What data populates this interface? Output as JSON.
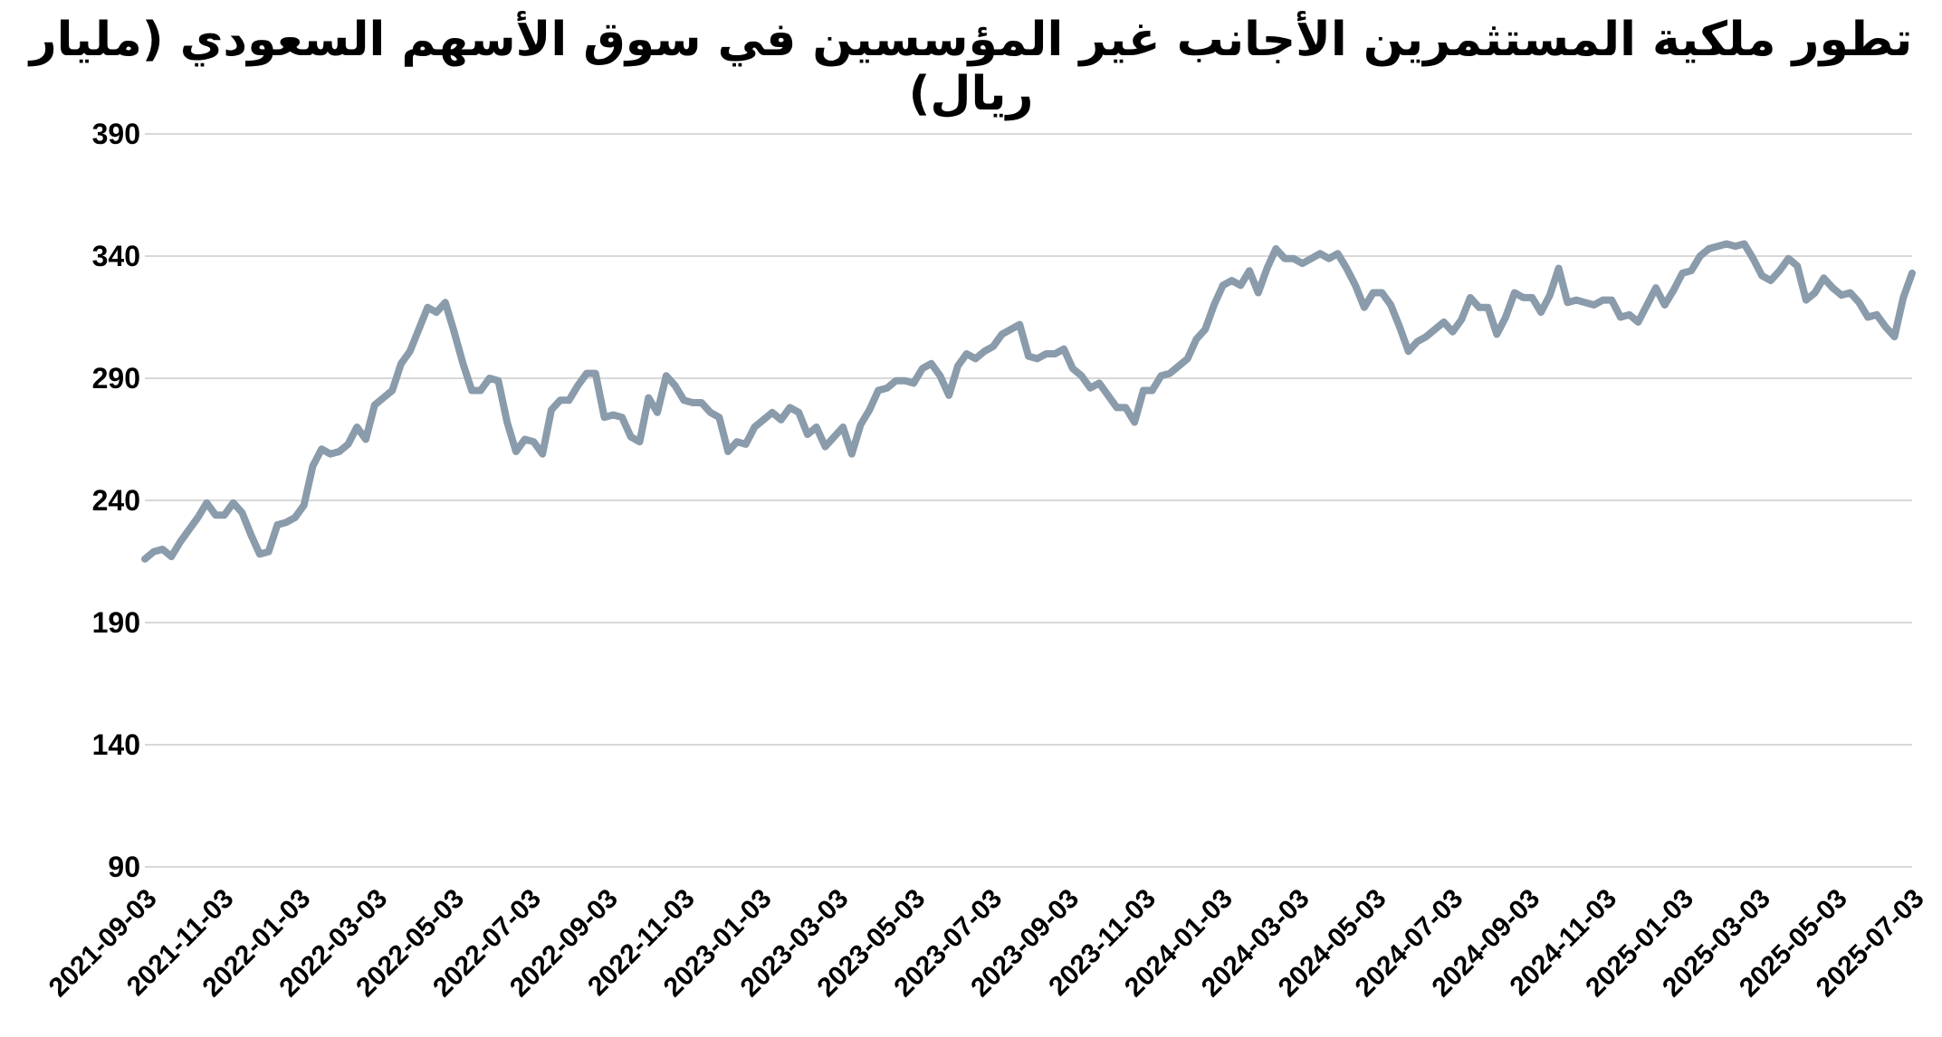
{
  "chart_data": {
    "type": "line",
    "title": "تطور ملكية المستثمرين الأجانب غير المؤسسين في سوق الأسهم السعودي (مليار ريال)",
    "xlabel": "",
    "ylabel": "",
    "ylim": [
      90,
      390
    ],
    "y_ticks": [
      "390",
      "340",
      "290",
      "240",
      "190",
      "140",
      "90"
    ],
    "x_ticks": [
      "2021-09-03",
      "2021-11-03",
      "2022-01-03",
      "2022-03-03",
      "2022-05-03",
      "2022-07-03",
      "2022-09-03",
      "2022-11-03",
      "2023-01-03",
      "2023-03-03",
      "2023-05-03",
      "2023-07-03",
      "2023-09-03",
      "2023-11-03",
      "2024-01-03",
      "2024-03-03",
      "2024-05-03",
      "2024-07-03",
      "2024-09-03",
      "2024-11-03",
      "2025-01-03",
      "2025-03-03",
      "2025-05-03",
      "2025-07-03"
    ],
    "grid": true,
    "legend": "none",
    "color": "#8a9bab",
    "series": [
      {
        "values": [
          216,
          219,
          220,
          217,
          223,
          228,
          233,
          239,
          234,
          234,
          239,
          235,
          226,
          218,
          219,
          230,
          231,
          233,
          238,
          254,
          261,
          259,
          260,
          263,
          270,
          265,
          279,
          282,
          285,
          296,
          301,
          310,
          319,
          317,
          321,
          309,
          296,
          285,
          285,
          290,
          289,
          272,
          260,
          265,
          264,
          259,
          277,
          281,
          281,
          287,
          292,
          292,
          274,
          275,
          274,
          266,
          264,
          282,
          276,
          291,
          287,
          281,
          280,
          280,
          276,
          274,
          260,
          264,
          263,
          270,
          273,
          276,
          273,
          278,
          276,
          267,
          270,
          262,
          266,
          270,
          259,
          271,
          277,
          285,
          286,
          289,
          289,
          288,
          294,
          296,
          291,
          283,
          295,
          300,
          298,
          301,
          303,
          308,
          310,
          312,
          299,
          298,
          300,
          300,
          302,
          294,
          291,
          286,
          288,
          283,
          278,
          278,
          272,
          285,
          285,
          291,
          292,
          295,
          298,
          306,
          310,
          320,
          328,
          330,
          328,
          334,
          325,
          335,
          343,
          339,
          339,
          337,
          339,
          341,
          339,
          341,
          335,
          328,
          319,
          325,
          325,
          320,
          311,
          301,
          305,
          307,
          310,
          313,
          309,
          314,
          323,
          319,
          319,
          308,
          315,
          325,
          323,
          323,
          317,
          324,
          335,
          321,
          322,
          321,
          320,
          322,
          322,
          315,
          316,
          313,
          320,
          327,
          320,
          326,
          333,
          334,
          340,
          343,
          344,
          345,
          344,
          345,
          339,
          332,
          330,
          334,
          339,
          336,
          322,
          325,
          331,
          327,
          324,
          325,
          321,
          315,
          316,
          311,
          307,
          323,
          333
        ]
      }
    ]
  }
}
